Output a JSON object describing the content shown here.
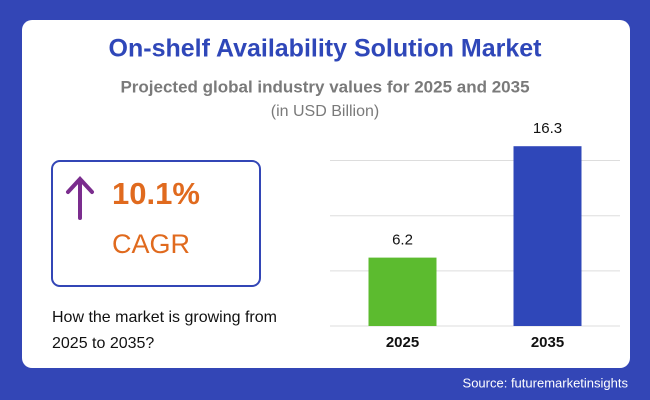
{
  "chart_data": {
    "type": "bar",
    "title": "On-shelf Availability Solution Market",
    "subtitle": "Projected global industry values for 2025 and 2035",
    "unit_note": "(in USD Billion)",
    "categories": [
      "2025",
      "2035"
    ],
    "values": [
      6.2,
      16.3
    ],
    "colors": [
      "#5cbb2f",
      "#2f47b9"
    ],
    "ylim": [
      0,
      16.5
    ],
    "yticks": [
      0,
      5,
      10,
      15
    ],
    "grid": true
  },
  "cagr": {
    "value": "10.1%",
    "label": "CAGR"
  },
  "question": "How the market is growing from 2025 to 2035?",
  "source": "Source: futuremarketinsights"
}
